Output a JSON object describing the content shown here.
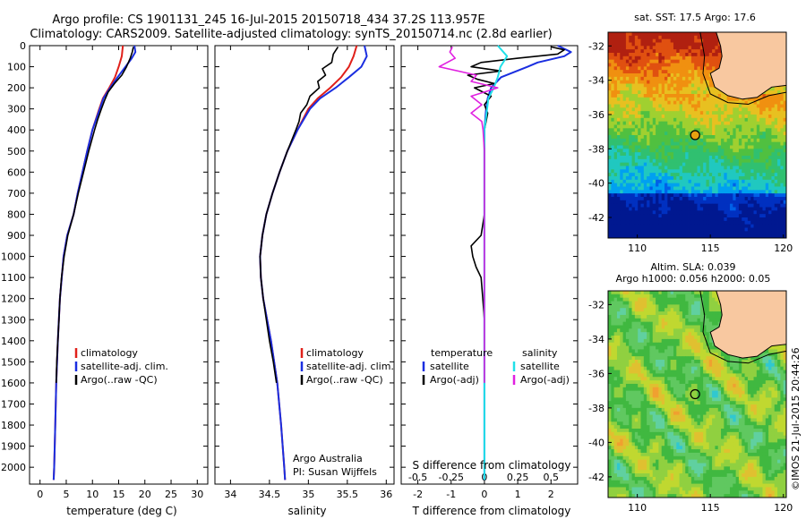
{
  "header": {
    "line1": "Argo profile: CS 1901131_245 16-Jul-2015 20150718_434 37.2S 113.957E",
    "line2": "Climatology: CARS2009. Satellite-adjusted climatology: synTS_20150714.nc (2.8d earlier)"
  },
  "credit": "©IMOS 21-Jul-2015 20:44:26",
  "colors": {
    "climatology": "#e0201a",
    "satellite": "#1a2ee0",
    "argo": "#000000",
    "sal_satellite": "#20e0e8",
    "sal_argo": "#e020e0",
    "land": "#f8c8a0"
  },
  "chart_data": [
    {
      "type": "line",
      "panel": "temperature",
      "xlabel": "temperature (deg C)",
      "ylabel": "",
      "xlim": [
        -2,
        32
      ],
      "ylim": [
        2080,
        0
      ],
      "xticks": [
        0,
        5,
        10,
        15,
        20,
        25,
        30
      ],
      "yticks": [
        0,
        100,
        200,
        300,
        400,
        500,
        600,
        700,
        800,
        900,
        1000,
        1100,
        1200,
        1300,
        1400,
        1500,
        1600,
        1700,
        1800,
        1900,
        2000
      ],
      "legend": [
        "climatology",
        "satellite-adj. clim.",
        "Argo(..raw -QC)"
      ],
      "legend_position": "lower-center",
      "series": [
        {
          "name": "climatology",
          "depth": [
            0,
            50,
            100,
            150,
            200,
            250,
            300,
            400,
            500,
            600,
            700,
            800,
            900,
            1000,
            1200,
            1400,
            1600,
            1800,
            2000,
            2060
          ],
          "values": [
            15.8,
            15.6,
            15.0,
            14.3,
            13.2,
            12.0,
            11.3,
            10.0,
            9.0,
            8.1,
            7.2,
            6.4,
            5.2,
            4.5,
            3.8,
            3.4,
            3.1,
            2.9,
            2.7,
            2.6
          ]
        },
        {
          "name": "satellite-adj. clim.",
          "depth": [
            0,
            30,
            60,
            100,
            150,
            200,
            250,
            300,
            400,
            500,
            600,
            700,
            800,
            900,
            1000,
            1200,
            1400,
            1600,
            1800,
            2000,
            2060
          ],
          "values": [
            18.0,
            18.2,
            17.5,
            16.3,
            14.8,
            13.4,
            12.1,
            11.4,
            10.0,
            9.0,
            8.1,
            7.2,
            6.4,
            5.2,
            4.5,
            3.8,
            3.4,
            3.1,
            2.9,
            2.7,
            2.6
          ]
        },
        {
          "name": "Argo(..raw -QC)",
          "depth": [
            6,
            30,
            60,
            100,
            140,
            180,
            220,
            260,
            300,
            350,
            400,
            500,
            600,
            700,
            800,
            900,
            1000,
            1100,
            1200,
            1300,
            1400,
            1500,
            1600
          ],
          "values": [
            17.8,
            17.6,
            17.2,
            16.5,
            15.6,
            14.2,
            13.0,
            12.3,
            11.7,
            11.0,
            10.4,
            9.3,
            8.3,
            7.3,
            6.4,
            5.3,
            4.6,
            4.1,
            3.8,
            3.6,
            3.4,
            3.2,
            3.1
          ]
        }
      ]
    },
    {
      "type": "line",
      "panel": "salinity",
      "xlabel": "salinity",
      "xlim": [
        33.8,
        36.1
      ],
      "ylim": [
        2080,
        0
      ],
      "xticks": [
        34,
        34.5,
        35,
        35.5,
        36
      ],
      "legend": [
        "climatology",
        "satellite-adj. clim.",
        "Argo(..raw -QC)"
      ],
      "annotation_lines": [
        "Argo Australia",
        "PI: Susan Wijffels"
      ],
      "series": [
        {
          "name": "climatology",
          "depth": [
            0,
            50,
            100,
            150,
            200,
            250,
            300,
            400,
            500,
            600,
            700,
            800,
            900,
            1000,
            1100,
            1200,
            1400,
            1600,
            1800,
            2000,
            2060
          ],
          "values": [
            35.62,
            35.58,
            35.52,
            35.42,
            35.28,
            35.12,
            35.0,
            34.86,
            34.73,
            34.63,
            34.54,
            34.46,
            34.41,
            34.38,
            34.39,
            34.42,
            34.52,
            34.6,
            34.65,
            34.69,
            34.7
          ]
        },
        {
          "name": "satellite-adj. clim.",
          "depth": [
            0,
            50,
            100,
            150,
            200,
            250,
            300,
            400,
            500,
            600,
            700,
            800,
            900,
            1000,
            1100,
            1200,
            1400,
            1600,
            1800,
            2000,
            2060
          ],
          "values": [
            35.72,
            35.75,
            35.68,
            35.52,
            35.35,
            35.15,
            35.02,
            34.86,
            34.73,
            34.63,
            34.54,
            34.46,
            34.41,
            34.38,
            34.39,
            34.42,
            34.52,
            34.6,
            34.65,
            34.69,
            34.7
          ]
        },
        {
          "name": "Argo(..raw -QC)",
          "depth": [
            6,
            40,
            80,
            110,
            140,
            170,
            200,
            240,
            280,
            320,
            360,
            400,
            500,
            600,
            700,
            800,
            900,
            1000,
            1100,
            1200,
            1300,
            1400,
            1500,
            1600
          ],
          "values": [
            35.38,
            35.32,
            35.3,
            35.18,
            35.22,
            35.12,
            35.14,
            35.02,
            34.98,
            34.9,
            34.88,
            34.84,
            34.73,
            34.63,
            34.54,
            34.46,
            34.41,
            34.38,
            34.39,
            34.42,
            34.46,
            34.5,
            34.55,
            34.59
          ]
        }
      ]
    },
    {
      "type": "line",
      "panel": "difference",
      "xlabel": "T difference from climatology",
      "x2label": "S difference from climatology",
      "xlim": [
        -2.5,
        2.8
      ],
      "x2lim": [
        -0.625,
        0.7
      ],
      "ylim": [
        2080,
        0
      ],
      "xticks": [
        -2,
        -1,
        0,
        1,
        2
      ],
      "x2ticks": [
        -0.5,
        -0.25,
        0,
        0.25,
        0.5
      ],
      "x2ticklabels": [
        "-0.5",
        "-0.25",
        "0",
        "0.25",
        "0.5"
      ],
      "legend_temperature": [
        "temperature",
        "satellite",
        "Argo(-adj)"
      ],
      "legend_salinity": [
        "salinity",
        "satellite",
        "Argo(-adj)"
      ],
      "series": [
        {
          "name": "satellite",
          "group": "temperature",
          "depth": [
            0,
            30,
            50,
            80,
            100,
            150,
            200,
            250,
            300,
            400,
            500,
            2060
          ],
          "values": [
            2.2,
            2.6,
            2.4,
            1.6,
            1.3,
            0.5,
            0.2,
            0.1,
            0.05,
            0.0,
            0.0,
            0.0
          ]
        },
        {
          "name": "Argo(-adj)",
          "group": "temperature",
          "depth": [
            6,
            20,
            40,
            60,
            80,
            100,
            120,
            140,
            160,
            180,
            200,
            240,
            280,
            320,
            400,
            500,
            600,
            800,
            900,
            950,
            1000,
            1050,
            1100,
            1200,
            1300,
            1400,
            1500,
            1600
          ],
          "values": [
            2.0,
            2.4,
            2.2,
            1.0,
            -0.1,
            -0.4,
            0.5,
            -0.5,
            -0.2,
            0.3,
            -0.3,
            0.2,
            0.0,
            0.1,
            0.0,
            0.0,
            0.0,
            0.0,
            -0.1,
            -0.4,
            -0.35,
            -0.25,
            -0.1,
            -0.05,
            0.0,
            0.0,
            0.0,
            0.0
          ]
        },
        {
          "name": "satellite",
          "group": "salinity",
          "depth": [
            0,
            50,
            100,
            150,
            200,
            250,
            300,
            400,
            500,
            2060
          ],
          "values": [
            0.1,
            0.17,
            0.12,
            0.1,
            0.07,
            0.03,
            0.02,
            0.0,
            0.0,
            0.0
          ]
        },
        {
          "name": "Argo(-adj)",
          "group": "salinity",
          "depth": [
            6,
            30,
            60,
            100,
            140,
            170,
            200,
            240,
            280,
            320,
            360,
            400,
            500,
            600,
            800,
            1000,
            1200,
            1400,
            1600
          ],
          "values": [
            -0.24,
            -0.26,
            -0.22,
            -0.34,
            -0.06,
            -0.1,
            0.1,
            -0.1,
            -0.02,
            -0.1,
            -0.02,
            -0.01,
            0.0,
            0.0,
            0.0,
            0.0,
            0.0,
            0.0,
            0.0
          ]
        }
      ]
    },
    {
      "type": "heatmap",
      "panel": "sst-map",
      "title": "sat. SST: 17.5 Argo: 17.6",
      "xlim": [
        108,
        120.2
      ],
      "ylim": [
        -43.2,
        -31.2
      ],
      "xticks": [
        110,
        115,
        120
      ],
      "yticks": [
        -32,
        -34,
        -36,
        -38,
        -40,
        -42
      ],
      "float_position": {
        "lon": 113.957,
        "lat": -37.2
      }
    },
    {
      "type": "heatmap",
      "panel": "sla-map",
      "title_lines": [
        "Altim. SLA: 0.039",
        "Argo h1000: 0.056 h2000: 0.05"
      ],
      "xlim": [
        108,
        120.2
      ],
      "ylim": [
        -43.2,
        -31.2
      ],
      "xticks": [
        110,
        115,
        120
      ],
      "yticks": [
        -32,
        -34,
        -36,
        -38,
        -40,
        -42
      ],
      "float_position": {
        "lon": 113.957,
        "lat": -37.2
      }
    }
  ]
}
